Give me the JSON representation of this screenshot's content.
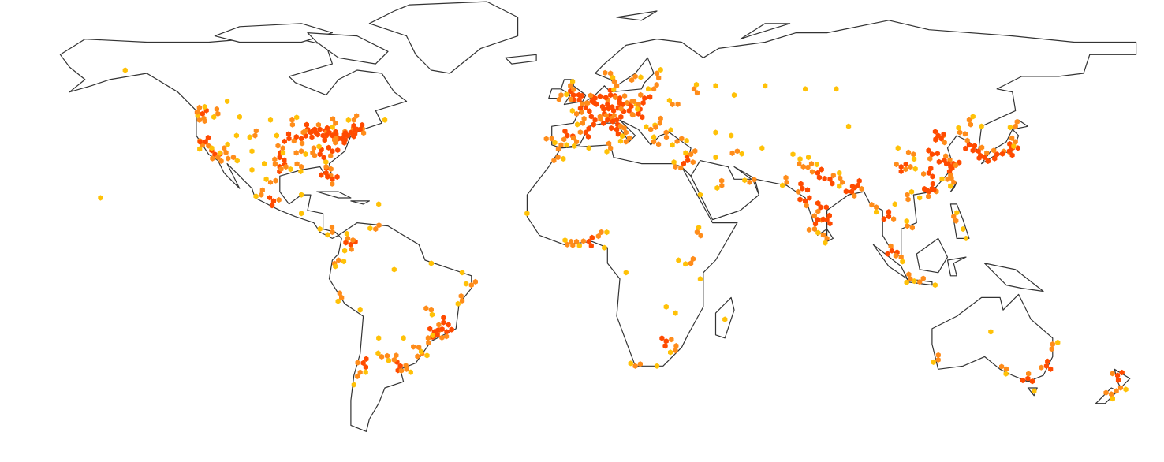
{
  "map": {
    "projection": "equirectangular",
    "colors": {
      "low": "#FFC107",
      "mid": "#FF8C1A",
      "high": "#FF4A00",
      "land": "#FFFFFF",
      "border": "#333333"
    },
    "points": [
      [
        -122,
        37,
        2
      ],
      [
        -121,
        38,
        3
      ],
      [
        -118,
        34,
        3
      ],
      [
        -117,
        33,
        2
      ],
      [
        -119,
        36,
        1
      ],
      [
        -112,
        33,
        2
      ],
      [
        -111,
        40,
        1
      ],
      [
        -105,
        40,
        2
      ],
      [
        -106,
        35,
        1
      ],
      [
        -97,
        33,
        3
      ],
      [
        -97,
        30,
        3
      ],
      [
        -95,
        30,
        2
      ],
      [
        -96,
        36,
        2
      ],
      [
        -94,
        39,
        3
      ],
      [
        -90,
        39,
        3
      ],
      [
        -88,
        42,
        3
      ],
      [
        -87,
        41,
        3
      ],
      [
        -84,
        42,
        3
      ],
      [
        -83,
        40,
        3
      ],
      [
        -81,
        41,
        3
      ],
      [
        -80,
        40,
        3
      ],
      [
        -78,
        39,
        3
      ],
      [
        -77,
        39,
        3
      ],
      [
        -75,
        40,
        3
      ],
      [
        -74,
        41,
        3
      ],
      [
        -72,
        42,
        3
      ],
      [
        -71,
        42,
        3
      ],
      [
        -80,
        35,
        3
      ],
      [
        -84,
        34,
        3
      ],
      [
        -86,
        36,
        2
      ],
      [
        -90,
        35,
        2
      ],
      [
        -90,
        30,
        2
      ],
      [
        -82,
        28,
        3
      ],
      [
        -80,
        26,
        3
      ],
      [
        -82,
        30,
        2
      ],
      [
        -93,
        45,
        2
      ],
      [
        -100,
        45,
        1
      ],
      [
        -110,
        46,
        1
      ],
      [
        -117,
        47,
        2
      ],
      [
        -122,
        47,
        3
      ],
      [
        -123,
        45,
        2
      ],
      [
        -115,
        36,
        2
      ],
      [
        -98,
        40,
        1
      ],
      [
        -102,
        31,
        1
      ],
      [
        -79,
        44,
        2
      ],
      [
        -73,
        45,
        2
      ],
      [
        -63,
        45,
        1
      ],
      [
        -114,
        51,
        1
      ],
      [
        -123,
        49,
        2
      ],
      [
        -147,
        61,
        1
      ],
      [
        -99,
        19,
        3
      ],
      [
        -103,
        21,
        2
      ],
      [
        -100,
        25,
        2
      ],
      [
        -106,
        29,
        1
      ],
      [
        -90,
        21,
        1
      ],
      [
        -90,
        15,
        1
      ],
      [
        -84,
        10,
        1
      ],
      [
        -80,
        9,
        2
      ],
      [
        -74,
        5,
        3
      ],
      [
        -75,
        7,
        2
      ],
      [
        -76,
        3,
        1
      ],
      [
        -78,
        0,
        2
      ],
      [
        -79,
        -2,
        1
      ],
      [
        -77,
        -12,
        2
      ],
      [
        -66,
        10,
        2
      ],
      [
        -71,
        -16,
        1
      ],
      [
        -70,
        -33,
        3
      ],
      [
        -71,
        -36,
        2
      ],
      [
        -73,
        -40,
        1
      ],
      [
        -58,
        -34,
        3
      ],
      [
        -60,
        -32,
        2
      ],
      [
        -64,
        -31,
        2
      ],
      [
        -65,
        -25,
        1
      ],
      [
        -57,
        -25,
        1
      ],
      [
        -56,
        -35,
        2
      ],
      [
        -47,
        -23,
        3
      ],
      [
        -46,
        -24,
        3
      ],
      [
        -43,
        -23,
        3
      ],
      [
        -44,
        -20,
        3
      ],
      [
        -49,
        -25,
        2
      ],
      [
        -51,
        -30,
        2
      ],
      [
        -48,
        -16,
        2
      ],
      [
        -38,
        -13,
        2
      ],
      [
        -35,
        -8,
        2
      ],
      [
        -38,
        -4,
        1
      ],
      [
        -48,
        -1,
        1
      ],
      [
        -60,
        -3,
        1
      ],
      [
        -52,
        -28,
        2
      ],
      [
        -65,
        18,
        1
      ],
      [
        -0.1,
        51.5,
        3
      ],
      [
        -2,
        53,
        3
      ],
      [
        -3,
        56,
        2
      ],
      [
        -6,
        53,
        2
      ],
      [
        2,
        49,
        3
      ],
      [
        5,
        45,
        3
      ],
      [
        1,
        44,
        2
      ],
      [
        -1,
        47,
        2
      ],
      [
        4,
        51,
        3
      ],
      [
        5,
        52,
        3
      ],
      [
        9,
        50,
        3
      ],
      [
        13,
        52,
        3
      ],
      [
        10,
        53,
        3
      ],
      [
        11,
        48,
        3
      ],
      [
        8,
        47,
        3
      ],
      [
        12,
        45,
        3
      ],
      [
        9,
        45,
        3
      ],
      [
        12,
        42,
        3
      ],
      [
        15,
        41,
        2
      ],
      [
        15,
        38,
        2
      ],
      [
        -4,
        40,
        3
      ],
      [
        2,
        41,
        3
      ],
      [
        -6,
        37,
        2
      ],
      [
        -9,
        39,
        2
      ],
      [
        -1,
        38,
        2
      ],
      [
        16,
        48,
        3
      ],
      [
        14,
        50,
        3
      ],
      [
        19,
        47,
        3
      ],
      [
        21,
        52,
        3
      ],
      [
        17,
        51,
        2
      ],
      [
        19,
        50,
        2
      ],
      [
        26,
        44,
        2
      ],
      [
        23,
        42,
        2
      ],
      [
        24,
        38,
        2
      ],
      [
        28,
        41,
        2
      ],
      [
        33,
        39,
        2
      ],
      [
        30,
        37,
        1
      ],
      [
        35,
        32,
        3
      ],
      [
        36,
        34,
        2
      ],
      [
        31,
        30,
        2
      ],
      [
        25,
        60,
        2
      ],
      [
        18,
        59,
        2
      ],
      [
        10,
        60,
        2
      ],
      [
        12,
        56,
        2
      ],
      [
        24,
        55,
        2
      ],
      [
        30,
        50,
        2
      ],
      [
        37,
        55,
        2
      ],
      [
        44,
        56,
        1
      ],
      [
        50,
        53,
        1
      ],
      [
        60,
        56,
        1
      ],
      [
        73,
        55,
        1
      ],
      [
        83,
        55,
        1
      ],
      [
        44,
        41,
        1
      ],
      [
        49,
        40,
        1
      ],
      [
        51,
        35,
        2
      ],
      [
        59,
        36,
        1
      ],
      [
        46,
        24,
        2
      ],
      [
        55,
        25,
        2
      ],
      [
        44,
        33,
        1
      ],
      [
        39,
        21,
        1
      ],
      [
        -7,
        33,
        2
      ],
      [
        3,
        36,
        1
      ],
      [
        10,
        36,
        2
      ],
      [
        -17,
        15,
        1
      ],
      [
        -4,
        5,
        2
      ],
      [
        3,
        6,
        3
      ],
      [
        7,
        9,
        2
      ],
      [
        -1,
        6,
        2
      ],
      [
        8,
        4,
        1
      ],
      [
        36,
        -1,
        2
      ],
      [
        39,
        -6,
        1
      ],
      [
        38,
        9,
        2
      ],
      [
        32,
        0,
        1
      ],
      [
        15,
        -4,
        1
      ],
      [
        28,
        -26,
        3
      ],
      [
        31,
        -29,
        2
      ],
      [
        18,
        -34,
        2
      ],
      [
        25,
        -34,
        1
      ],
      [
        31,
        -17,
        1
      ],
      [
        28,
        -15,
        1
      ],
      [
        47,
        -19,
        1
      ],
      [
        67,
        25,
        2
      ],
      [
        73,
        19,
        3
      ],
      [
        72,
        23,
        3
      ],
      [
        77,
        28,
        3
      ],
      [
        75,
        31,
        2
      ],
      [
        81,
        26,
        3
      ],
      [
        85,
        25,
        2
      ],
      [
        88,
        22,
        3
      ],
      [
        78,
        17,
        3
      ],
      [
        80,
        13,
        3
      ],
      [
        77,
        13,
        3
      ],
      [
        76,
        10,
        2
      ],
      [
        80,
        7,
        2
      ],
      [
        90,
        24,
        3
      ],
      [
        74,
        33,
        1
      ],
      [
        71,
        31,
        2
      ],
      [
        69,
        34,
        1
      ],
      [
        84,
        28,
        1
      ],
      [
        96,
        17,
        2
      ],
      [
        100,
        14,
        3
      ],
      [
        102,
        18,
        1
      ],
      [
        106,
        11,
        2
      ],
      [
        106,
        21,
        2
      ],
      [
        101,
        3,
        3
      ],
      [
        104,
        1,
        2
      ],
      [
        107,
        -6,
        2
      ],
      [
        110,
        -7,
        2
      ],
      [
        115,
        -8,
        1
      ],
      [
        121,
        14,
        2
      ],
      [
        124,
        10,
        1
      ],
      [
        125,
        7,
        1
      ],
      [
        116,
        40,
        3
      ],
      [
        117,
        39,
        3
      ],
      [
        114,
        34,
        3
      ],
      [
        113,
        28,
        3
      ],
      [
        121,
        31,
        3
      ],
      [
        118,
        32,
        3
      ],
      [
        120,
        30,
        3
      ],
      [
        114,
        23,
        3
      ],
      [
        113,
        22,
        3
      ],
      [
        110,
        20,
        1
      ],
      [
        104,
        30,
        3
      ],
      [
        107,
        30,
        2
      ],
      [
        108,
        34,
        2
      ],
      [
        103,
        36,
        1
      ],
      [
        87,
        43,
        1
      ],
      [
        123,
        41,
        2
      ],
      [
        126,
        45,
        2
      ],
      [
        126,
        37,
        3
      ],
      [
        129,
        35,
        3
      ],
      [
        121,
        25,
        2
      ],
      [
        119,
        26,
        2
      ],
      [
        140,
        36,
        3
      ],
      [
        139,
        35,
        3
      ],
      [
        135,
        34,
        3
      ],
      [
        131,
        33,
        3
      ],
      [
        141,
        38,
        2
      ],
      [
        141,
        43,
        2
      ],
      [
        130,
        43,
        1
      ],
      [
        151,
        -34,
        3
      ],
      [
        153,
        -27,
        2
      ],
      [
        145,
        -38,
        3
      ],
      [
        138,
        -35,
        2
      ],
      [
        116,
        -32,
        2
      ],
      [
        147,
        -42,
        1
      ],
      [
        133,
        -23,
        1
      ],
      [
        174,
        -37,
        3
      ],
      [
        175,
        -41,
        2
      ],
      [
        172,
        -43,
        2
      ],
      [
        -155,
        20,
        1
      ]
    ]
  }
}
